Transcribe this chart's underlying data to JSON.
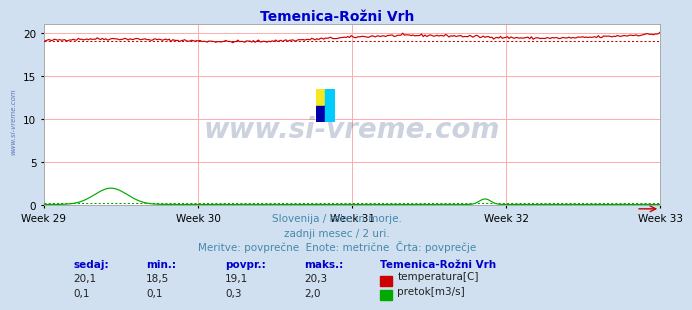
{
  "title": "Temenica-Rožni Vrh",
  "title_color": "#0000cc",
  "bg_color": "#d0e0f0",
  "plot_bg_color": "#ffffff",
  "grid_color": "#ffaaaa",
  "x_weeks": [
    "Week 29",
    "Week 30",
    "Week 31",
    "Week 32",
    "Week 33"
  ],
  "ylim": [
    0,
    21
  ],
  "yticks": [
    0,
    5,
    10,
    15,
    20
  ],
  "n_points": 360,
  "temp_min": 18.5,
  "temp_max": 20.3,
  "temp_avg": 19.1,
  "temp_current": 20.1,
  "flow_min": 0.1,
  "flow_max": 2.0,
  "flow_avg": 0.3,
  "flow_current": 0.1,
  "temp_color": "#cc0000",
  "flow_color": "#00aa00",
  "sidebar_color": "#4466aa",
  "watermark_color": "#1a3a6a",
  "footer_color": "#4488aa",
  "label_color": "#0000cc",
  "subtitle1": "Slovenija / reke in morje.",
  "subtitle2": "zadnji mesec / 2 uri.",
  "subtitle3": "Meritve: povprečne  Enote: metrične  Črta: povprečje",
  "stat_header": [
    "sedaj:",
    "min.:",
    "povpr.:",
    "maks.:"
  ],
  "legend_title": "Temenica-Rožni Vrh",
  "legend_items": [
    "temperatura[C]",
    "pretok[m3/s]"
  ],
  "stat_temp": [
    "20,1",
    "18,5",
    "19,1",
    "20,3"
  ],
  "stat_flow": [
    "0,1",
    "0,1",
    "0,3",
    "2,0"
  ],
  "logo_colors": [
    "#f5e820",
    "#00ccff",
    "#0000aa",
    "#00ccff"
  ]
}
